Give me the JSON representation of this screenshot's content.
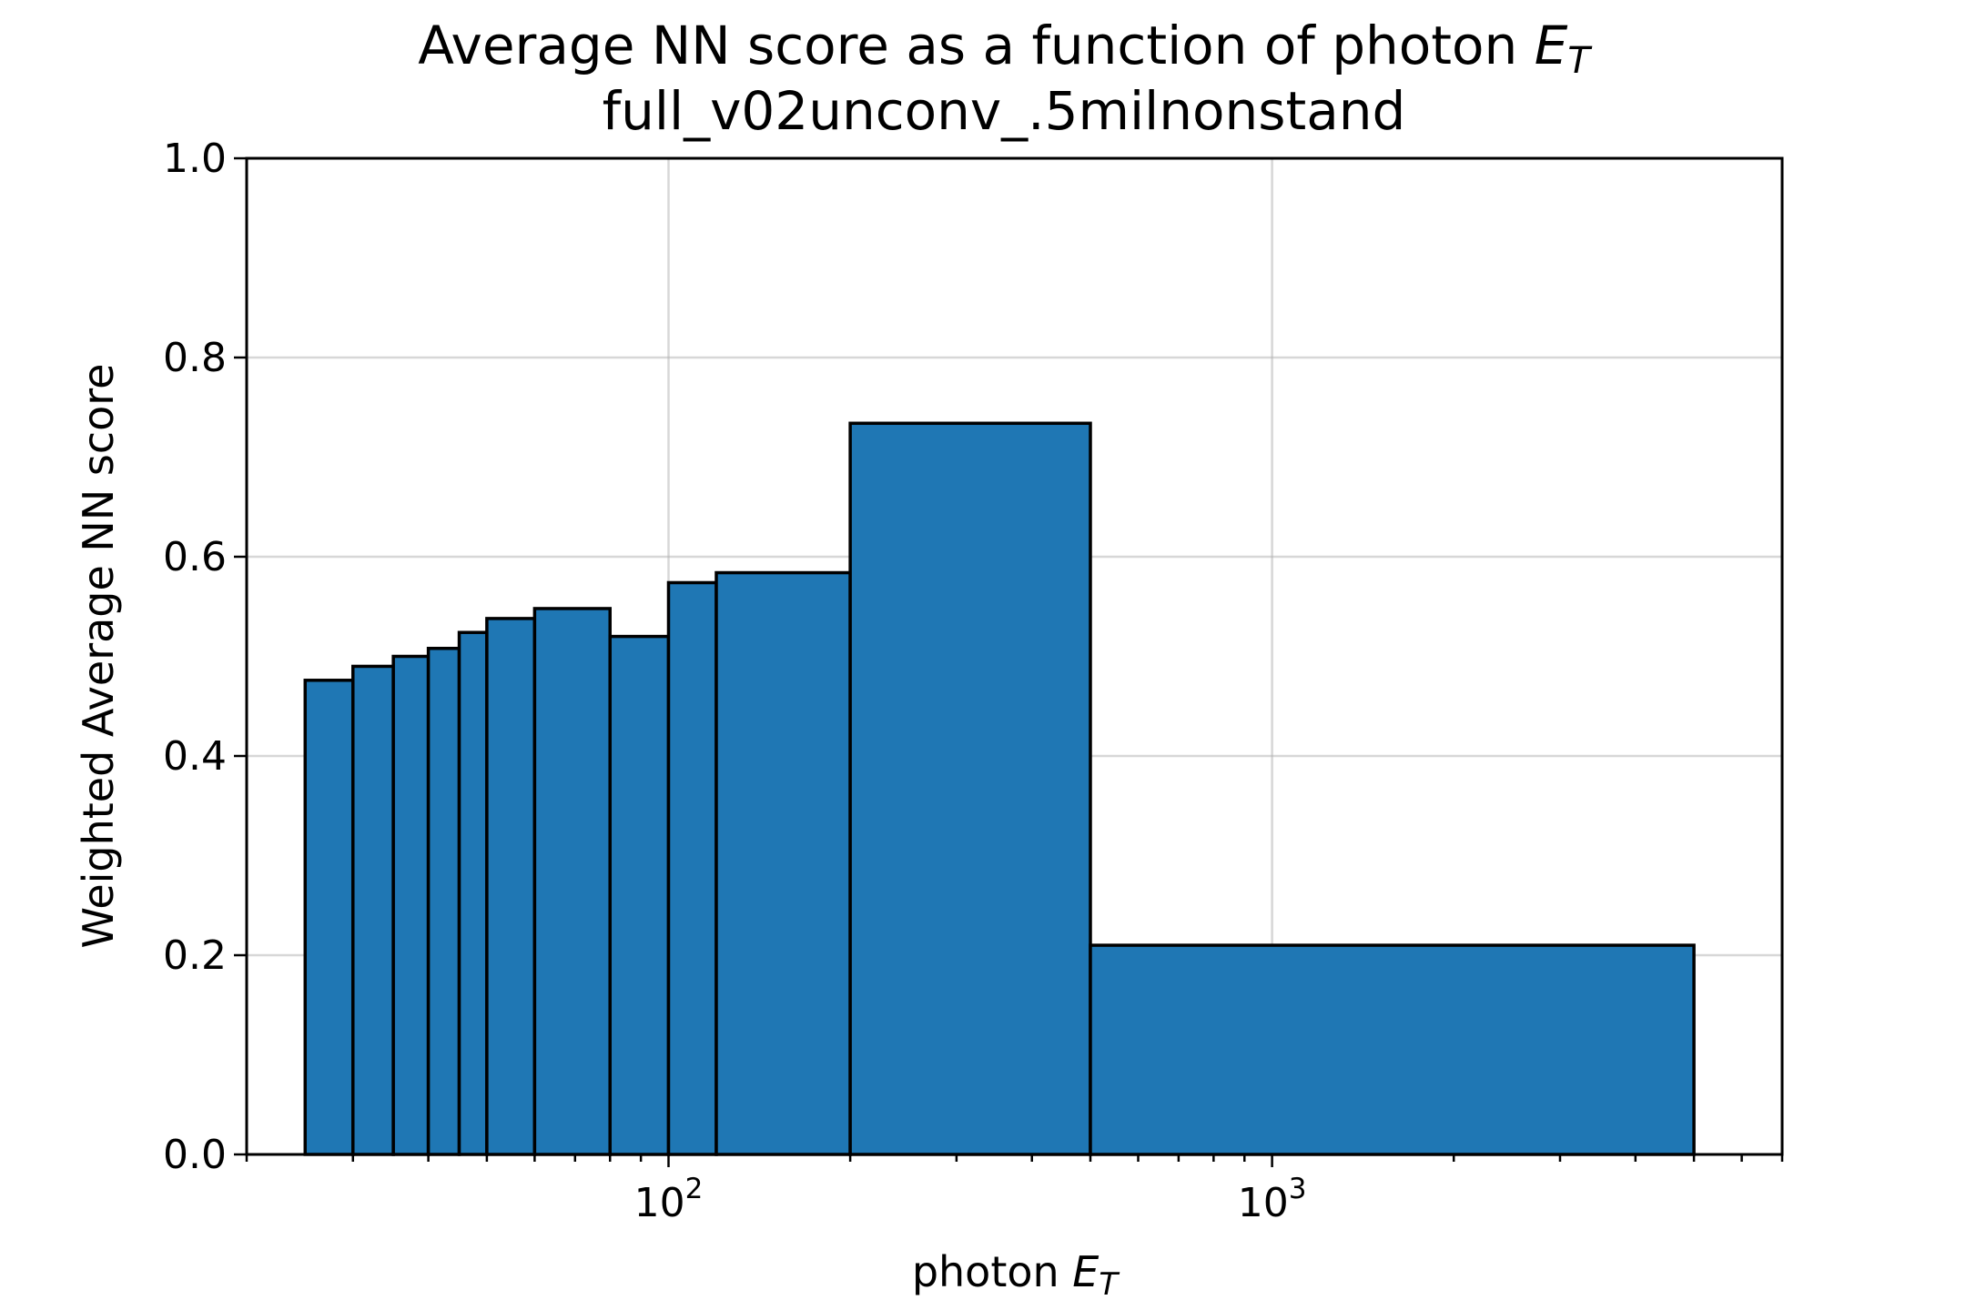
{
  "chart_data": {
    "type": "bar",
    "title_line1": "Average NN score as a function of photon",
    "title_symbol": "E",
    "title_subscript": "T",
    "title_line2": "full_v02unconv_.5milnonstand",
    "xlabel": "photon",
    "xlabel_symbol": "E",
    "xlabel_subscript": "T",
    "ylabel": "Weighted Average NN score",
    "xscale": "log",
    "xlim": [
      20,
      7000
    ],
    "ylim": [
      0,
      1
    ],
    "grid": true,
    "bin_edges": [
      25,
      30,
      35,
      40,
      45,
      50,
      60,
      80,
      100,
      120,
      200,
      500,
      5000
    ],
    "values": [
      0.476,
      0.49,
      0.5,
      0.508,
      0.524,
      0.538,
      0.548,
      0.52,
      0.574,
      0.584,
      0.734,
      0.21
    ],
    "y_ticks": [
      "0.0",
      "0.2",
      "0.4",
      "0.6",
      "0.8",
      "1.0"
    ],
    "x_major_ticks": [
      {
        "value": 100,
        "base": "10",
        "exp": "2"
      },
      {
        "value": 1000,
        "base": "10",
        "exp": "3"
      }
    ]
  }
}
